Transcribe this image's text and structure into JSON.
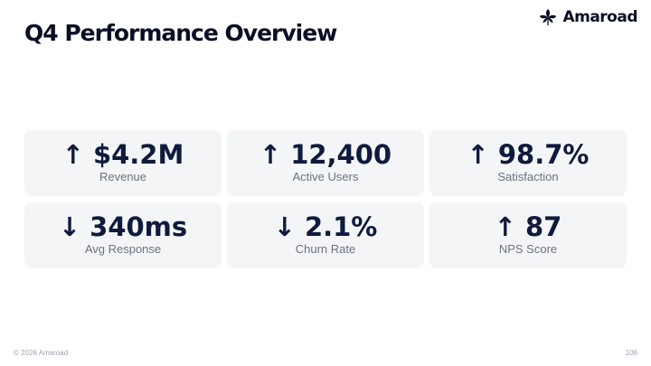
{
  "slide": {
    "title": "Q4 Performance Overview",
    "brand": {
      "name": "Amaroad",
      "icon": "leaf-logo-icon"
    },
    "metrics": [
      {
        "arrow": "↑",
        "direction": "up",
        "value": "$4.2M",
        "label": "Revenue"
      },
      {
        "arrow": "↑",
        "direction": "up",
        "value": "12,400",
        "label": "Active Users"
      },
      {
        "arrow": "↑",
        "direction": "up",
        "value": "98.7%",
        "label": "Satisfaction"
      },
      {
        "arrow": "↓",
        "direction": "down",
        "value": "340ms",
        "label": "Avg Response"
      },
      {
        "arrow": "↓",
        "direction": "down",
        "value": "2.1%",
        "label": "Churn Rate"
      },
      {
        "arrow": "↑",
        "direction": "up",
        "value": "87",
        "label": "NPS Score"
      }
    ],
    "footer": {
      "copyright": "© 2026 Amaroad",
      "page_number": "106"
    }
  },
  "colors": {
    "text_primary": "#0f1b3d",
    "text_muted": "#6b7280",
    "card_bg": "#f4f5f7"
  }
}
